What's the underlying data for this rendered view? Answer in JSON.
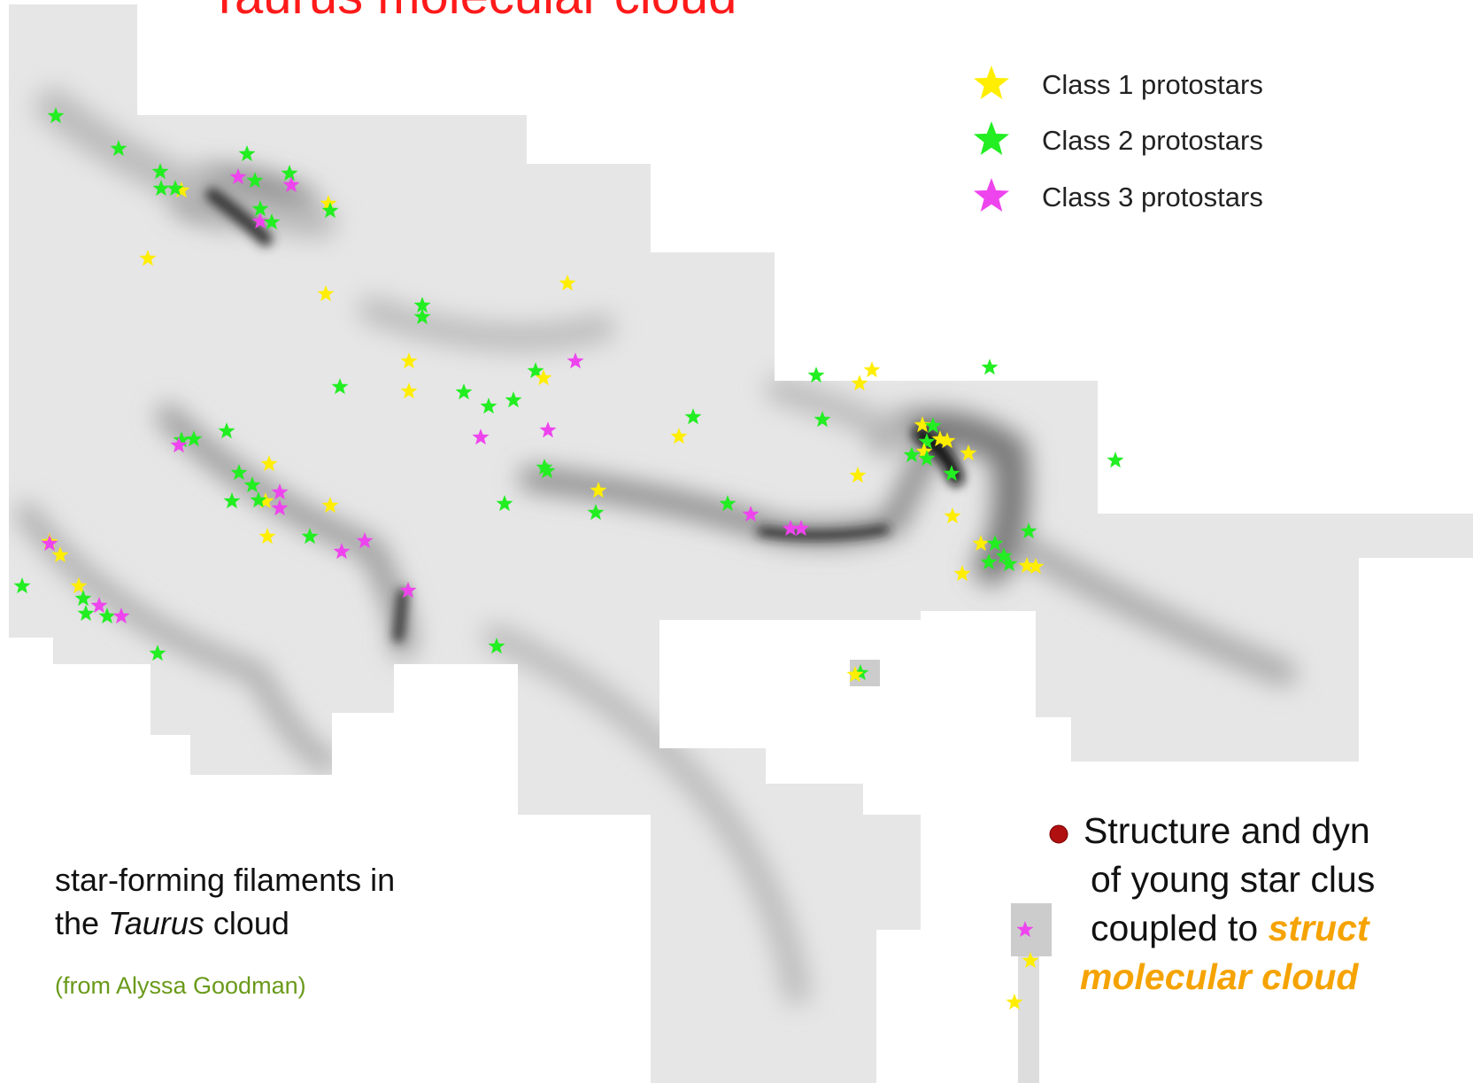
{
  "header": {
    "title": "Taurus molecular cloud"
  },
  "legend": {
    "items": [
      {
        "label": "Class 1 protostars",
        "color": "#ffee00"
      },
      {
        "label": "Class 2 protostars",
        "color": "#22ee22"
      },
      {
        "label": "Class 3 protostars",
        "color": "#ee44ee"
      }
    ]
  },
  "caption": {
    "line1": "star-forming  filaments in",
    "line2_a": "the",
    "line2_italic": "Taurus",
    "line2_b": "cloud",
    "credit": "(from Alyssa Goodman)"
  },
  "bullet": {
    "line1": "Structure and dyn",
    "line2": "of young star clus",
    "line3_a": "coupled to",
    "line3_b": "struct",
    "line4": "molecular cloud"
  }
}
